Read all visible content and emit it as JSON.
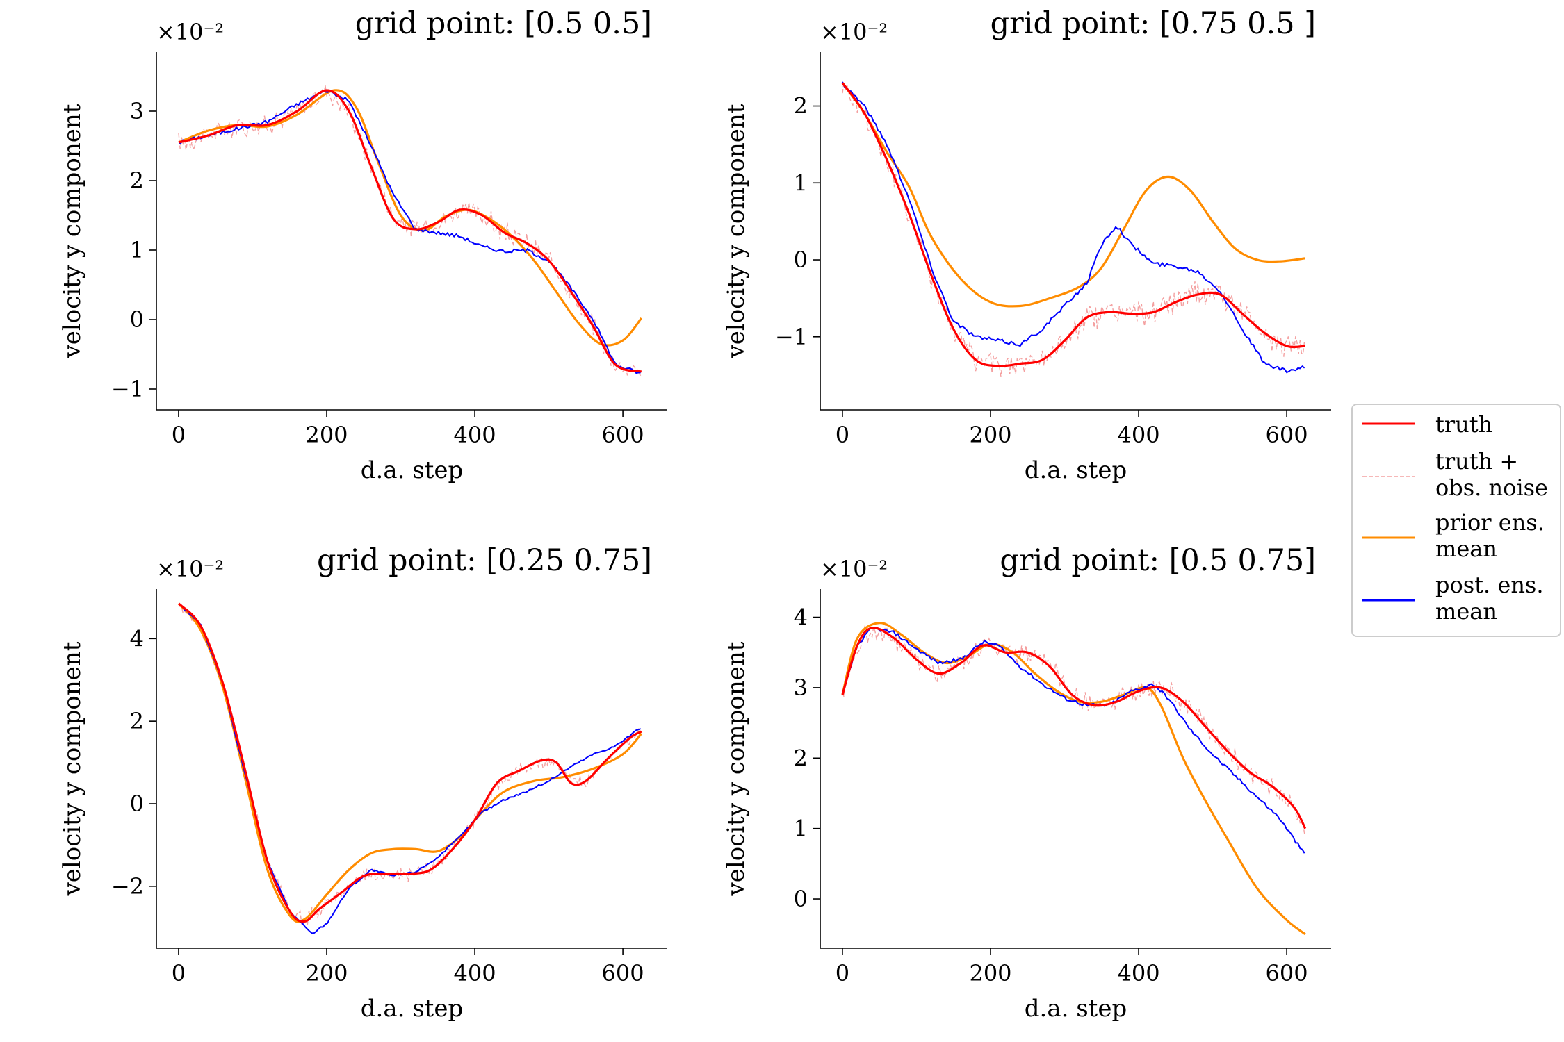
{
  "figure": {
    "legend": {
      "location": "right-center",
      "entries": [
        {
          "series": "truth",
          "lines": [
            "truth"
          ],
          "color": "#ff0000",
          "style": "solid"
        },
        {
          "series": "noisy",
          "lines": [
            "truth +",
            "obs. noise"
          ],
          "color": "#f4a0a0",
          "style": "dashed"
        },
        {
          "series": "prior",
          "lines": [
            "prior ens.",
            "mean"
          ],
          "color": "#ff8c00",
          "style": "solid"
        },
        {
          "series": "post",
          "lines": [
            "post. ens.",
            "mean"
          ],
          "color": "#0000ff",
          "style": "solid"
        }
      ]
    }
  },
  "chart_data": [
    {
      "type": "line",
      "title": "grid point: [0.5 0.5]",
      "xlabel": "d.a. step",
      "ylabel": "velocity y component",
      "offset_label": "×10⁻²",
      "xlim": [
        -30,
        660
      ],
      "ylim": [
        -1.3,
        3.85
      ],
      "xticks": [
        0,
        200,
        400,
        600
      ],
      "yticks": [
        -1,
        0,
        1,
        2,
        3
      ],
      "noise_amp": 0.18,
      "series": [
        {
          "name": "truth",
          "x": [
            0,
            40,
            80,
            120,
            160,
            200,
            230,
            260,
            290,
            320,
            350,
            380,
            410,
            440,
            470,
            500,
            530,
            560,
            590,
            625
          ],
          "values": [
            2.55,
            2.65,
            2.8,
            2.8,
            3.0,
            3.3,
            3.0,
            2.2,
            1.45,
            1.3,
            1.4,
            1.58,
            1.5,
            1.25,
            1.1,
            0.85,
            0.4,
            -0.1,
            -0.65,
            -0.75
          ]
        },
        {
          "series_key": "prior",
          "name": "prior ens. mean",
          "x": [
            0,
            40,
            80,
            120,
            160,
            210,
            240,
            270,
            300,
            330,
            360,
            390,
            420,
            450,
            480,
            510,
            540,
            570,
            600,
            625
          ],
          "values": [
            2.55,
            2.72,
            2.8,
            2.78,
            2.95,
            3.3,
            3.05,
            2.25,
            1.5,
            1.28,
            1.48,
            1.58,
            1.45,
            1.2,
            0.85,
            0.4,
            -0.05,
            -0.35,
            -0.3,
            0.02
          ]
        },
        {
          "series_key": "post",
          "name": "post. ens. mean",
          "x": [
            0,
            40,
            80,
            120,
            160,
            200,
            230,
            260,
            290,
            320,
            350,
            380,
            410,
            440,
            470,
            500,
            530,
            560,
            590,
            625
          ],
          "values": [
            2.55,
            2.65,
            2.75,
            2.85,
            3.1,
            3.3,
            3.15,
            2.5,
            1.8,
            1.3,
            1.25,
            1.2,
            1.05,
            0.98,
            1.0,
            0.85,
            0.45,
            0.0,
            -0.65,
            -0.78
          ]
        }
      ]
    },
    {
      "type": "line",
      "title": "grid point: [0.75 0.5 ]",
      "xlabel": "d.a. step",
      "ylabel": "velocity y component",
      "offset_label": "×10⁻²",
      "xlim": [
        -30,
        660
      ],
      "ylim": [
        -1.95,
        2.7
      ],
      "xticks": [
        0,
        200,
        400,
        600
      ],
      "yticks": [
        -1,
        0,
        1,
        2
      ],
      "noise_amp": 0.2,
      "series": [
        {
          "name": "truth",
          "x": [
            0,
            30,
            60,
            90,
            120,
            150,
            180,
            210,
            240,
            270,
            300,
            330,
            360,
            390,
            420,
            450,
            480,
            510,
            540,
            570,
            600,
            625
          ],
          "values": [
            2.3,
            1.9,
            1.3,
            0.6,
            -0.2,
            -0.9,
            -1.3,
            -1.38,
            -1.35,
            -1.3,
            -1.05,
            -0.75,
            -0.68,
            -0.7,
            -0.68,
            -0.55,
            -0.45,
            -0.45,
            -0.7,
            -0.95,
            -1.12,
            -1.12
          ]
        },
        {
          "series_key": "prior",
          "name": "prior ens. mean",
          "x": [
            0,
            30,
            60,
            90,
            120,
            160,
            200,
            240,
            280,
            320,
            350,
            380,
            410,
            440,
            470,
            500,
            530,
            560,
            590,
            625
          ],
          "values": [
            2.3,
            1.9,
            1.4,
            0.95,
            0.3,
            -0.25,
            -0.55,
            -0.6,
            -0.5,
            -0.35,
            -0.1,
            0.4,
            0.9,
            1.08,
            0.9,
            0.5,
            0.15,
            0.0,
            -0.02,
            0.02
          ]
        },
        {
          "series_key": "post",
          "name": "post. ens. mean",
          "x": [
            0,
            30,
            60,
            90,
            120,
            150,
            180,
            210,
            240,
            270,
            300,
            330,
            350,
            370,
            390,
            420,
            450,
            480,
            510,
            540,
            570,
            600,
            625
          ],
          "values": [
            2.3,
            2.0,
            1.5,
            0.8,
            -0.1,
            -0.8,
            -1.0,
            -1.05,
            -1.1,
            -0.9,
            -0.6,
            -0.3,
            0.2,
            0.45,
            0.2,
            -0.05,
            -0.08,
            -0.15,
            -0.4,
            -0.9,
            -1.35,
            -1.45,
            -1.4
          ]
        }
      ]
    },
    {
      "type": "line",
      "title": "grid point: [0.25 0.75]",
      "xlabel": "d.a. step",
      "ylabel": "velocity y component",
      "offset_label": "×10⁻²",
      "xlim": [
        -30,
        660
      ],
      "ylim": [
        -3.5,
        5.2
      ],
      "xticks": [
        0,
        200,
        400,
        600
      ],
      "yticks": [
        -2,
        0,
        2,
        4
      ],
      "noise_amp": 0.2,
      "series": [
        {
          "name": "truth",
          "x": [
            0,
            30,
            60,
            90,
            120,
            150,
            170,
            190,
            220,
            250,
            280,
            310,
            340,
            370,
            400,
            430,
            460,
            490,
            510,
            530,
            550,
            580,
            610,
            625
          ],
          "values": [
            4.85,
            4.3,
            2.9,
            0.8,
            -1.4,
            -2.6,
            -2.85,
            -2.55,
            -2.15,
            -1.75,
            -1.7,
            -1.7,
            -1.6,
            -1.1,
            -0.4,
            0.5,
            0.8,
            1.05,
            1.0,
            0.5,
            0.55,
            1.1,
            1.6,
            1.75
          ]
        },
        {
          "series_key": "prior",
          "name": "prior ens. mean",
          "x": [
            0,
            30,
            60,
            90,
            120,
            150,
            170,
            200,
            230,
            260,
            290,
            320,
            350,
            380,
            410,
            440,
            480,
            520,
            560,
            600,
            625
          ],
          "values": [
            4.85,
            4.2,
            2.8,
            0.6,
            -1.6,
            -2.7,
            -2.8,
            -2.2,
            -1.6,
            -1.2,
            -1.1,
            -1.1,
            -1.15,
            -0.8,
            -0.2,
            0.3,
            0.55,
            0.65,
            0.85,
            1.2,
            1.7
          ]
        },
        {
          "series_key": "post",
          "name": "post. ens. mean",
          "x": [
            0,
            30,
            60,
            90,
            120,
            150,
            180,
            200,
            230,
            260,
            290,
            320,
            350,
            380,
            410,
            440,
            470,
            500,
            530,
            560,
            590,
            625
          ],
          "values": [
            4.85,
            4.35,
            2.9,
            0.7,
            -1.4,
            -2.6,
            -3.15,
            -2.9,
            -2.05,
            -1.6,
            -1.75,
            -1.65,
            -1.3,
            -0.8,
            -0.2,
            0.1,
            0.3,
            0.55,
            0.9,
            1.2,
            1.4,
            1.85
          ]
        }
      ]
    },
    {
      "type": "line",
      "title": "grid point: [0.5 0.75]",
      "xlabel": "d.a. step",
      "ylabel": "velocity y component",
      "offset_label": "×10⁻²",
      "xlim": [
        -30,
        660
      ],
      "ylim": [
        -0.7,
        4.4
      ],
      "xticks": [
        0,
        200,
        400,
        600
      ],
      "yticks": [
        0,
        1,
        2,
        3,
        4
      ],
      "noise_amp": 0.18,
      "series": [
        {
          "name": "truth",
          "x": [
            0,
            20,
            40,
            70,
            100,
            130,
            160,
            190,
            220,
            250,
            280,
            310,
            340,
            370,
            400,
            430,
            460,
            490,
            520,
            550,
            580,
            610,
            625
          ],
          "values": [
            2.9,
            3.6,
            3.85,
            3.7,
            3.4,
            3.2,
            3.35,
            3.6,
            3.5,
            3.5,
            3.3,
            2.9,
            2.75,
            2.8,
            2.95,
            3.0,
            2.8,
            2.45,
            2.1,
            1.8,
            1.6,
            1.3,
            1.0
          ]
        },
        {
          "series_key": "prior",
          "name": "prior ens. mean",
          "x": [
            0,
            20,
            50,
            80,
            110,
            140,
            170,
            200,
            230,
            260,
            290,
            320,
            350,
            380,
            410,
            430,
            460,
            490,
            520,
            560,
            600,
            625
          ],
          "values": [
            2.9,
            3.7,
            3.92,
            3.75,
            3.5,
            3.35,
            3.45,
            3.62,
            3.5,
            3.2,
            2.95,
            2.8,
            2.8,
            2.9,
            3.0,
            2.75,
            2.0,
            1.4,
            0.85,
            0.15,
            -0.3,
            -0.5
          ]
        },
        {
          "series_key": "post",
          "name": "post. ens. mean",
          "x": [
            0,
            20,
            40,
            70,
            100,
            130,
            160,
            190,
            210,
            240,
            270,
            300,
            330,
            360,
            390,
            420,
            440,
            470,
            500,
            530,
            560,
            590,
            625
          ],
          "values": [
            2.9,
            3.6,
            3.85,
            3.78,
            3.55,
            3.35,
            3.4,
            3.65,
            3.6,
            3.3,
            3.05,
            2.85,
            2.75,
            2.75,
            2.95,
            3.05,
            2.85,
            2.4,
            2.05,
            1.75,
            1.45,
            1.15,
            0.62
          ]
        }
      ]
    }
  ]
}
